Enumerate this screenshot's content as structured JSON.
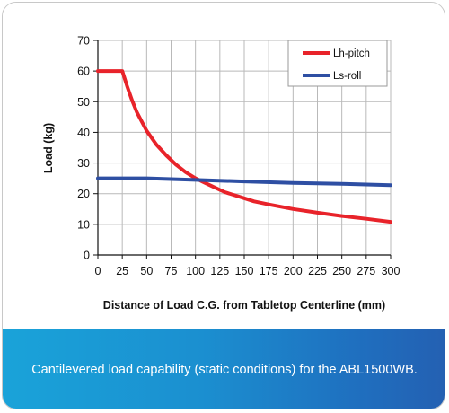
{
  "chart_data": {
    "type": "line",
    "xlabel": "Distance of Load C.G. from Tabletop Centerline (mm)",
    "ylabel": "Load (kg)",
    "xlim": [
      0,
      300
    ],
    "ylim": [
      0,
      70
    ],
    "xticks": [
      0,
      25,
      50,
      75,
      100,
      125,
      150,
      175,
      200,
      225,
      250,
      275,
      300
    ],
    "yticks": [
      0,
      10,
      20,
      30,
      40,
      50,
      60,
      70
    ],
    "grid": true,
    "legend_position": "top-right",
    "series": [
      {
        "name": "Lh-pitch",
        "color": "#e8232a",
        "x": [
          0,
          25,
          30,
          35,
          40,
          45,
          50,
          60,
          70,
          80,
          90,
          100,
          110,
          120,
          130,
          140,
          150,
          160,
          175,
          200,
          225,
          250,
          275,
          300
        ],
        "y": [
          60,
          60,
          55,
          50.5,
          46.5,
          43.5,
          40.5,
          36,
          32.5,
          29.5,
          27,
          25,
          23.5,
          22,
          20.5,
          19.5,
          18.5,
          17.5,
          16.5,
          15,
          13.8,
          12.7,
          11.8,
          10.8
        ]
      },
      {
        "name": "Ls-roll",
        "color": "#2e4fa3",
        "x": [
          0,
          50,
          100,
          150,
          200,
          250,
          300
        ],
        "y": [
          25,
          25,
          24.5,
          24,
          23.5,
          23.2,
          22.8
        ]
      }
    ]
  },
  "caption": "Cantilevered load capability (static conditions) for the ABL1500WB."
}
